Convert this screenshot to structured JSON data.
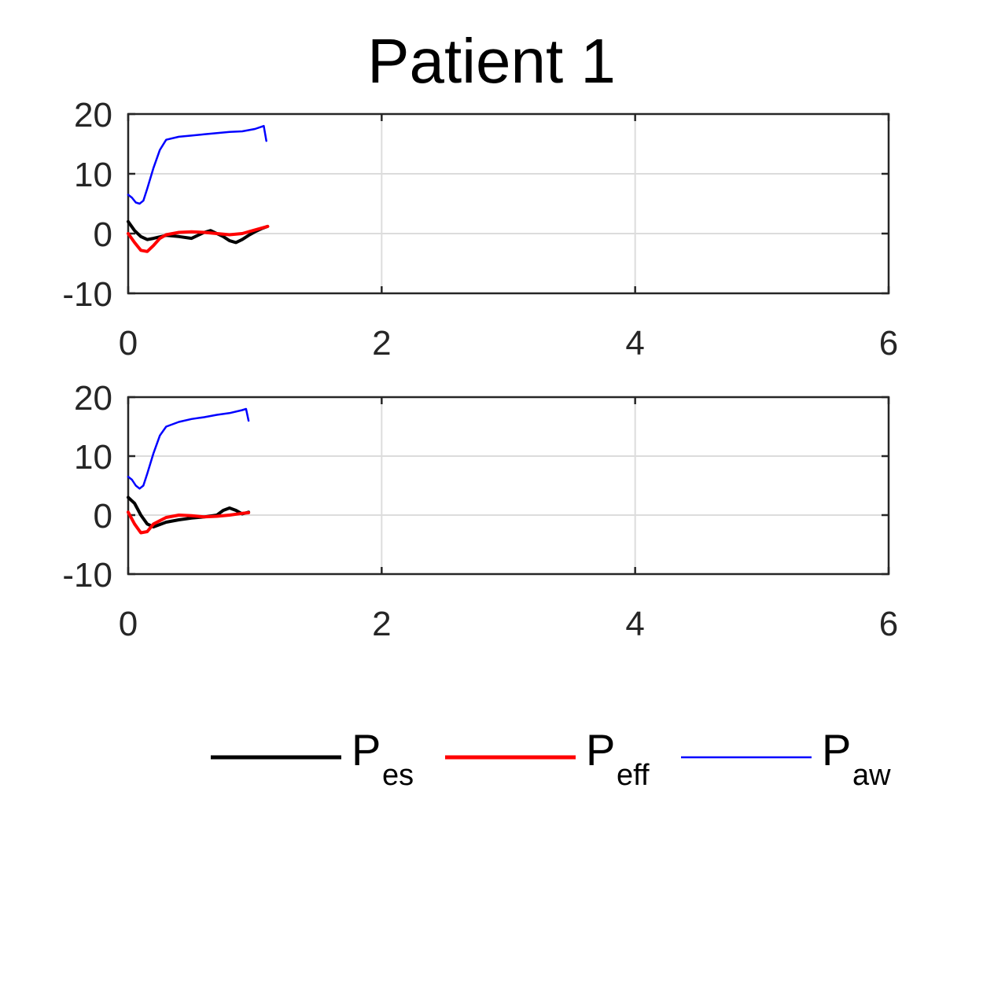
{
  "title": "Patient 1",
  "colors": {
    "Pes": "#000000",
    "Peff": "#ff0000",
    "Paw": "#0000ff",
    "axis": "#262626",
    "grid": "#dcdcdc"
  },
  "legend": {
    "placement": "bottom",
    "entries": [
      {
        "main": "P",
        "sub": "es"
      },
      {
        "main": "P",
        "sub": "eff"
      },
      {
        "main": "P",
        "sub": "aw"
      }
    ]
  },
  "chart_data": [
    {
      "type": "line",
      "xlim": [
        0,
        6
      ],
      "ylim": [
        -10,
        20
      ],
      "xticks": [
        "0",
        "2",
        "4",
        "6"
      ],
      "yticks": [
        "-10",
        "0",
        "10",
        "20"
      ],
      "grid": true,
      "series": [
        {
          "name": "Pes",
          "color": "#000000",
          "x": [
            0,
            0.05,
            0.1,
            0.15,
            0.2,
            0.3,
            0.4,
            0.5,
            0.6,
            0.65,
            0.7,
            0.75,
            0.8,
            0.85,
            0.9,
            0.95,
            1.0,
            1.05,
            1.1
          ],
          "y": [
            2,
            0.5,
            -0.5,
            -1,
            -0.8,
            -0.3,
            -0.5,
            -0.8,
            0.2,
            0.5,
            0,
            -0.5,
            -1.2,
            -1.5,
            -1,
            -0.3,
            0.3,
            0.8,
            1.2
          ]
        },
        {
          "name": "Peff",
          "color": "#ff0000",
          "x": [
            0,
            0.05,
            0.1,
            0.15,
            0.2,
            0.25,
            0.3,
            0.4,
            0.5,
            0.6,
            0.7,
            0.8,
            0.9,
            1.0,
            1.1
          ],
          "y": [
            0,
            -1.5,
            -2.8,
            -3,
            -2,
            -0.8,
            -0.2,
            0.2,
            0.3,
            0.2,
            0,
            -0.2,
            0,
            0.6,
            1.2
          ]
        },
        {
          "name": "Paw",
          "color": "#0000ff",
          "x": [
            0,
            0.03,
            0.06,
            0.09,
            0.12,
            0.15,
            0.2,
            0.25,
            0.3,
            0.4,
            0.5,
            0.6,
            0.7,
            0.8,
            0.9,
            1.0,
            1.07,
            1.09
          ],
          "y": [
            6.5,
            6,
            5.2,
            5,
            5.5,
            7.5,
            11,
            14,
            15.7,
            16.2,
            16.4,
            16.6,
            16.8,
            17,
            17.1,
            17.5,
            18,
            15.5
          ]
        }
      ]
    },
    {
      "type": "line",
      "xlim": [
        0,
        6
      ],
      "ylim": [
        -10,
        20
      ],
      "xticks": [
        "0",
        "2",
        "4",
        "6"
      ],
      "yticks": [
        "-10",
        "0",
        "10",
        "20"
      ],
      "grid": true,
      "series": [
        {
          "name": "Pes",
          "color": "#000000",
          "x": [
            0,
            0.05,
            0.1,
            0.15,
            0.2,
            0.3,
            0.4,
            0.5,
            0.6,
            0.7,
            0.75,
            0.8,
            0.85,
            0.9,
            0.95
          ],
          "y": [
            3,
            2,
            0,
            -1.5,
            -2,
            -1.2,
            -0.8,
            -0.5,
            -0.3,
            0,
            0.8,
            1.2,
            0.8,
            0.2,
            0.5
          ]
        },
        {
          "name": "Peff",
          "color": "#ff0000",
          "x": [
            0,
            0.05,
            0.1,
            0.15,
            0.2,
            0.3,
            0.4,
            0.5,
            0.6,
            0.7,
            0.8,
            0.9,
            0.95
          ],
          "y": [
            0.5,
            -1.5,
            -3,
            -2.8,
            -1.5,
            -0.4,
            0,
            -0.1,
            -0.3,
            -0.2,
            0,
            0.3,
            0.4
          ]
        },
        {
          "name": "Paw",
          "color": "#0000ff",
          "x": [
            0,
            0.03,
            0.06,
            0.09,
            0.12,
            0.15,
            0.2,
            0.25,
            0.3,
            0.4,
            0.5,
            0.6,
            0.7,
            0.8,
            0.9,
            0.93,
            0.95
          ],
          "y": [
            6.5,
            6,
            5,
            4.5,
            5,
            7,
            10.5,
            13.5,
            15,
            15.8,
            16.3,
            16.6,
            17,
            17.3,
            17.8,
            18,
            16
          ]
        }
      ]
    }
  ]
}
